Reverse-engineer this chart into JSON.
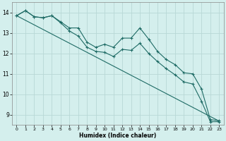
{
  "xlabel": "Humidex (Indice chaleur)",
  "background_color": "#d4efed",
  "grid_color": "#b8d8d6",
  "line_color": "#1e6b65",
  "xlim": [
    -0.5,
    23.5
  ],
  "ylim": [
    8.5,
    14.5
  ],
  "yticks": [
    9,
    10,
    11,
    12,
    13,
    14
  ],
  "xticks": [
    0,
    1,
    2,
    3,
    4,
    5,
    6,
    7,
    8,
    9,
    10,
    11,
    12,
    13,
    14,
    15,
    16,
    17,
    18,
    19,
    20,
    21,
    22,
    23
  ],
  "series1_x": [
    0,
    1,
    2,
    3,
    4,
    5,
    6,
    7,
    8,
    9,
    10,
    11,
    12,
    13,
    14,
    15,
    16,
    17,
    18,
    19,
    20,
    21,
    22,
    23
  ],
  "series1_y": [
    13.85,
    14.1,
    13.8,
    13.75,
    13.85,
    13.55,
    13.25,
    13.25,
    12.55,
    12.3,
    12.45,
    12.3,
    12.75,
    12.75,
    13.25,
    12.7,
    12.1,
    11.7,
    11.45,
    11.05,
    11.0,
    10.25,
    8.75,
    8.7
  ],
  "series2_x": [
    0,
    1,
    2,
    3,
    4,
    5,
    6,
    7,
    8,
    9,
    10,
    11,
    12,
    13,
    14,
    15,
    16,
    17,
    18,
    19,
    20,
    21,
    22,
    23
  ],
  "series2_y": [
    13.85,
    14.1,
    13.8,
    13.75,
    13.85,
    13.5,
    13.1,
    12.85,
    12.3,
    12.1,
    12.05,
    11.85,
    12.2,
    12.15,
    12.5,
    12.0,
    11.6,
    11.25,
    10.95,
    10.6,
    10.5,
    9.65,
    8.65,
    8.65
  ],
  "line_x": [
    0,
    23
  ],
  "line_y": [
    13.85,
    8.68
  ],
  "marker_size": 2.5,
  "line_width": 0.8
}
